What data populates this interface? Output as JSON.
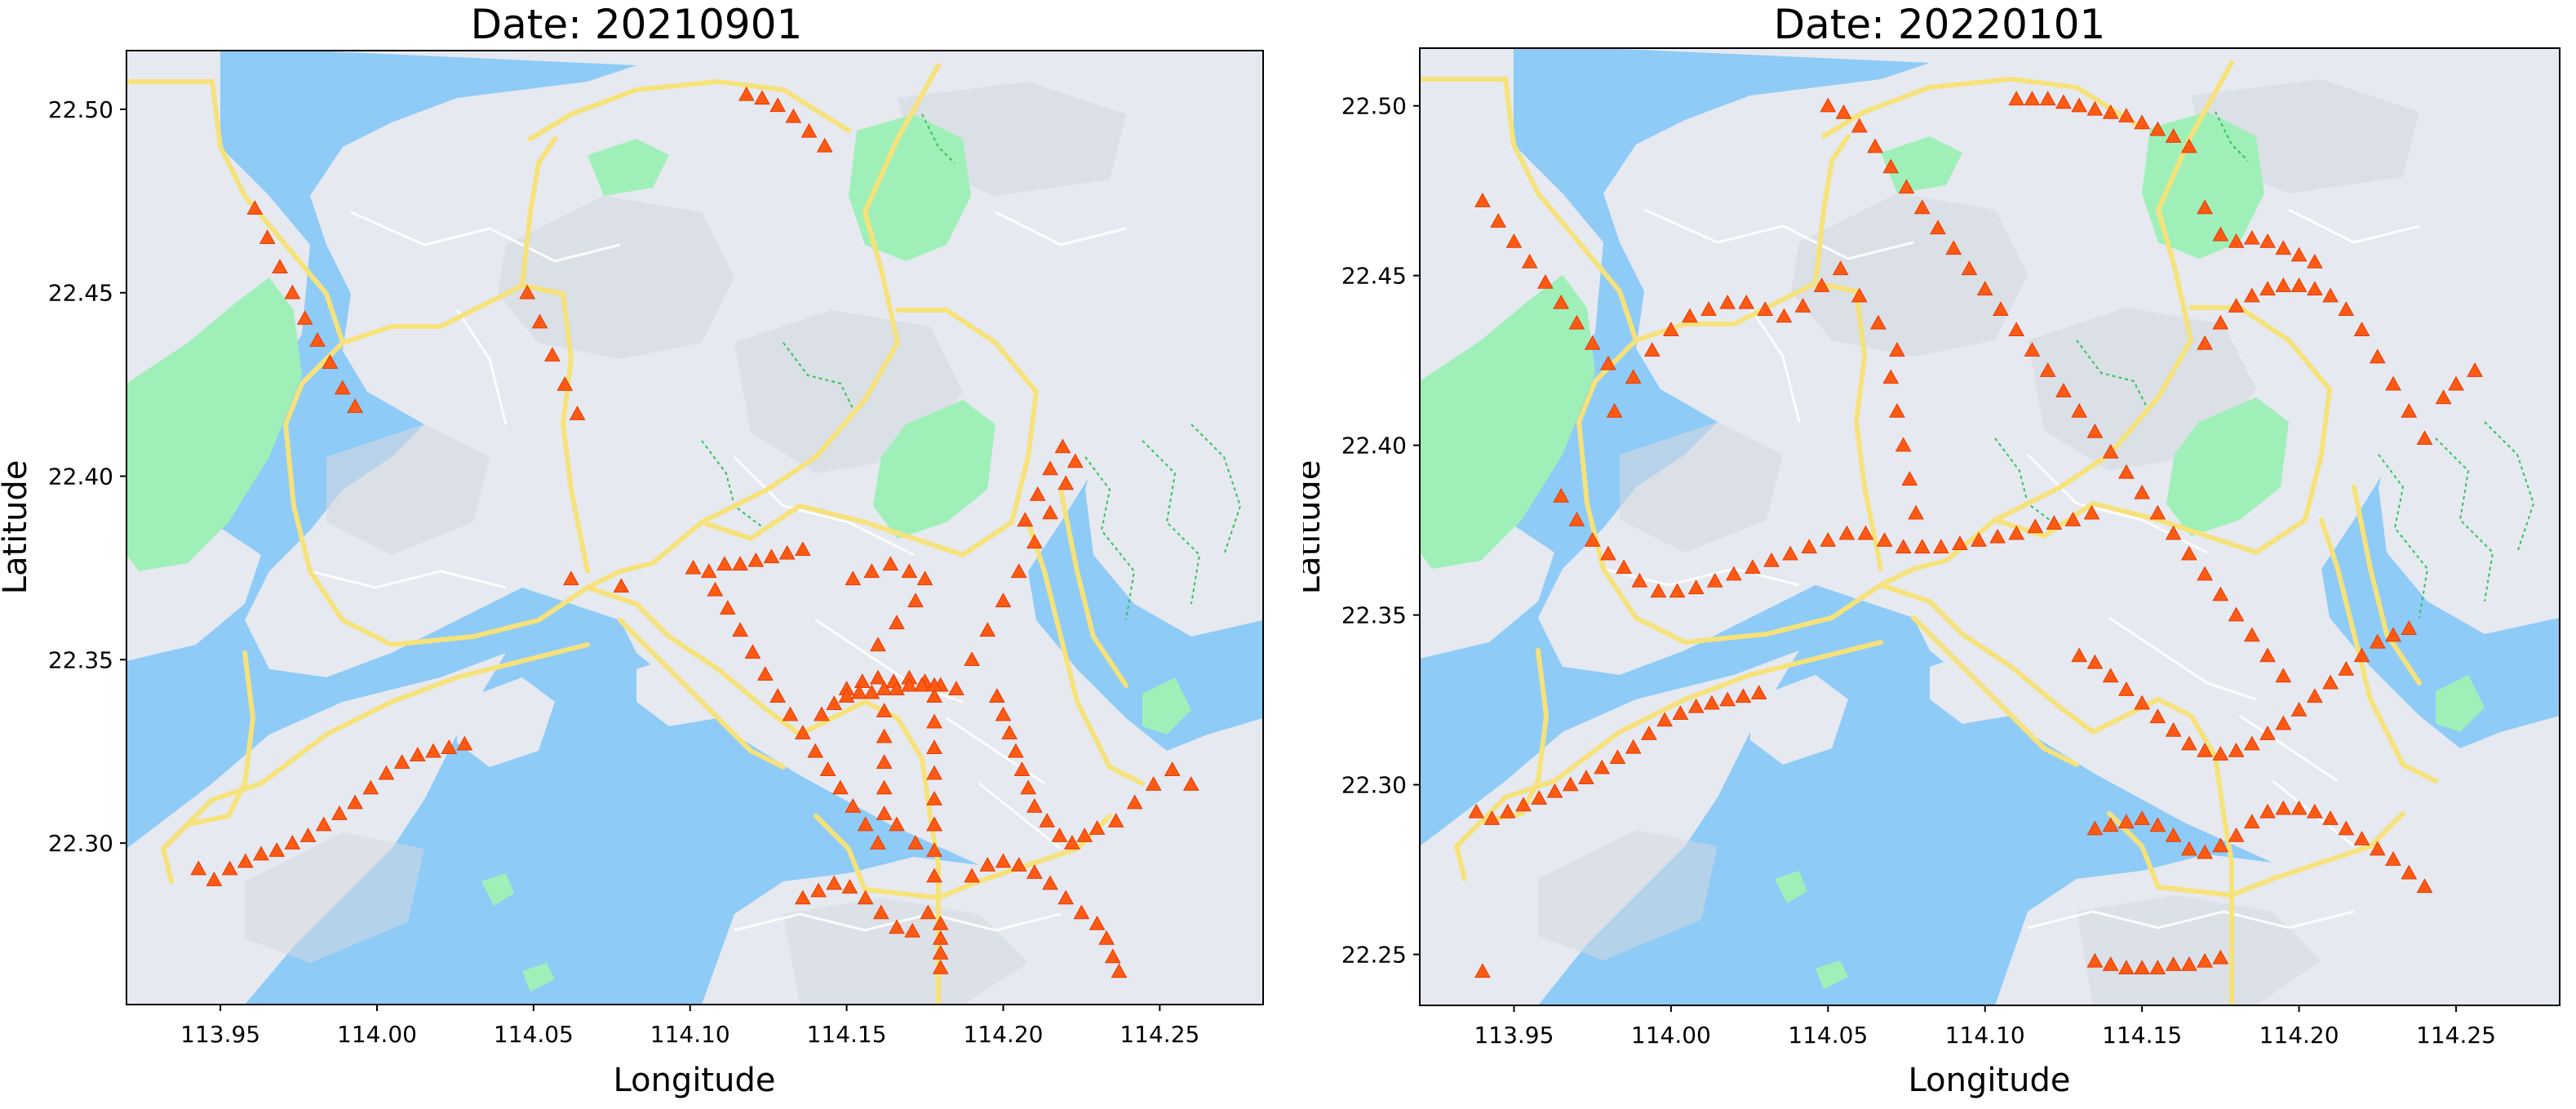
{
  "colors": {
    "sea": "#8ecbf7",
    "land": "#e6e9f0",
    "hill_shade": "#d4d8e0",
    "park": "#9ff0b8",
    "highway": "#f6e27a",
    "road": "#ffffff",
    "trail": "#2fc45a",
    "marker": "#ff5a14",
    "marker_edge": "#e23a00"
  },
  "maps": [
    {
      "title": "Date: 20210901",
      "xlabel": "Longitude",
      "ylabel": "Latitude",
      "xticks": [
        "113.95",
        "114.00",
        "114.05",
        "114.10",
        "114.15",
        "114.20",
        "114.25"
      ],
      "yticks": [
        "22.50",
        "22.45",
        "22.40",
        "22.35",
        "22.30"
      ],
      "marker_icon": "triangle-up-marker",
      "chart_data": {
        "type": "scatter",
        "xlim": [
          113.92,
          114.283
        ],
        "ylim": [
          22.256,
          22.516
        ],
        "x": [
          113.943,
          113.948,
          113.953,
          113.958,
          113.963,
          113.968,
          113.973,
          113.978,
          113.983,
          113.988,
          113.993,
          113.998,
          114.003,
          114.008,
          114.013,
          114.018,
          114.023,
          114.028,
          113.961,
          113.965,
          113.969,
          113.973,
          113.977,
          113.981,
          113.985,
          113.989,
          113.993,
          114.048,
          114.052,
          114.056,
          114.06,
          114.064,
          114.118,
          114.123,
          114.128,
          114.133,
          114.138,
          114.143,
          114.062,
          114.078,
          114.101,
          114.106,
          114.111,
          114.116,
          114.121,
          114.126,
          114.131,
          114.136,
          114.108,
          114.112,
          114.116,
          114.12,
          114.124,
          114.128,
          114.132,
          114.136,
          114.14,
          114.144,
          114.148,
          114.152,
          114.156,
          114.16,
          114.166,
          114.172,
          114.178,
          114.15,
          114.155,
          114.16,
          114.165,
          114.17,
          114.175,
          114.18,
          114.178,
          114.178,
          114.178,
          114.178,
          114.178,
          114.178,
          114.178,
          114.178,
          114.162,
          114.162,
          114.162,
          114.162,
          114.162,
          114.198,
          114.2,
          114.202,
          114.204,
          114.206,
          114.208,
          114.21,
          114.214,
          114.218,
          114.222,
          114.226,
          114.23,
          114.236,
          114.242,
          114.248,
          114.254,
          114.26,
          114.185,
          114.19,
          114.195,
          114.2,
          114.205,
          114.21,
          114.215,
          114.22,
          114.207,
          114.211,
          114.215,
          114.219,
          114.223,
          114.136,
          114.141,
          114.146,
          114.151,
          114.156,
          114.161,
          114.166,
          114.171,
          114.176,
          114.18,
          114.18,
          114.18,
          114.18,
          114.19,
          114.195,
          114.2,
          114.205,
          114.21,
          114.215,
          114.22,
          114.225,
          114.23,
          114.233,
          114.235,
          114.237,
          114.152,
          114.158,
          114.164,
          114.17,
          114.175,
          114.166,
          114.172,
          114.16,
          114.142,
          114.146,
          114.15,
          114.154,
          114.158,
          114.162,
          114.166,
          114.17,
          114.174,
          114.178
        ],
        "y": [
          22.293,
          22.29,
          22.293,
          22.295,
          22.297,
          22.298,
          22.3,
          22.302,
          22.305,
          22.308,
          22.311,
          22.315,
          22.319,
          22.322,
          22.324,
          22.325,
          22.326,
          22.327,
          22.473,
          22.465,
          22.457,
          22.45,
          22.443,
          22.437,
          22.431,
          22.424,
          22.419,
          22.45,
          22.442,
          22.433,
          22.425,
          22.417,
          22.504,
          22.503,
          22.501,
          22.498,
          22.494,
          22.49,
          22.372,
          22.37,
          22.375,
          22.374,
          22.376,
          22.376,
          22.377,
          22.378,
          22.379,
          22.38,
          22.369,
          22.364,
          22.358,
          22.352,
          22.346,
          22.34,
          22.335,
          22.33,
          22.325,
          22.32,
          22.315,
          22.31,
          22.305,
          22.3,
          22.305,
          22.3,
          22.305,
          22.342,
          22.344,
          22.345,
          22.344,
          22.345,
          22.344,
          22.343,
          22.34,
          22.333,
          22.326,
          22.319,
          22.312,
          22.305,
          22.298,
          22.291,
          22.336,
          22.329,
          22.322,
          22.315,
          22.308,
          22.34,
          22.335,
          22.33,
          22.325,
          22.32,
          22.315,
          22.31,
          22.306,
          22.302,
          22.3,
          22.302,
          22.304,
          22.306,
          22.311,
          22.316,
          22.32,
          22.316,
          22.342,
          22.35,
          22.358,
          22.366,
          22.374,
          22.382,
          22.39,
          22.398,
          22.388,
          22.395,
          22.402,
          22.408,
          22.404,
          22.285,
          22.287,
          22.289,
          22.288,
          22.285,
          22.281,
          22.277,
          22.276,
          22.281,
          22.278,
          22.274,
          22.27,
          22.266,
          22.291,
          22.294,
          22.295,
          22.294,
          22.292,
          22.289,
          22.285,
          22.281,
          22.278,
          22.274,
          22.269,
          22.265,
          22.372,
          22.374,
          22.376,
          22.374,
          22.372,
          22.36,
          22.366,
          22.354,
          22.335,
          22.338,
          22.34,
          22.341,
          22.341,
          22.342,
          22.342,
          22.343,
          22.343,
          22.343
        ]
      }
    },
    {
      "title": "Date: 20220101",
      "xlabel": "Longitude",
      "ylabel": "Latitude",
      "xticks": [
        "113.95",
        "114.00",
        "114.05",
        "114.10",
        "114.15",
        "114.20",
        "114.25"
      ],
      "yticks": [
        "22.50",
        "22.45",
        "22.40",
        "22.35",
        "22.30",
        "22.25"
      ],
      "marker_icon": "triangle-up-marker",
      "chart_data": {
        "type": "scatter",
        "xlim": [
          113.92,
          114.283
        ],
        "ylim": [
          22.235,
          22.517
        ],
        "x": [
          113.938,
          113.943,
          113.948,
          113.953,
          113.958,
          113.963,
          113.968,
          113.973,
          113.978,
          113.983,
          113.988,
          113.993,
          113.998,
          114.003,
          114.008,
          114.013,
          114.018,
          114.023,
          114.028,
          113.94,
          113.945,
          113.95,
          113.955,
          113.96,
          113.965,
          113.97,
          113.975,
          113.98,
          113.982,
          113.988,
          113.994,
          114.0,
          114.006,
          114.012,
          114.018,
          114.024,
          114.03,
          114.036,
          114.042,
          114.048,
          114.054,
          114.06,
          114.066,
          114.072,
          113.965,
          113.97,
          113.975,
          113.98,
          113.985,
          113.99,
          113.996,
          114.002,
          114.008,
          114.014,
          114.02,
          114.026,
          114.032,
          114.038,
          114.044,
          114.05,
          114.056,
          114.062,
          114.068,
          114.074,
          114.08,
          114.086,
          114.092,
          114.098,
          114.104,
          114.11,
          114.116,
          114.122,
          114.128,
          114.134,
          114.05,
          114.055,
          114.06,
          114.065,
          114.07,
          114.075,
          114.08,
          114.085,
          114.09,
          114.095,
          114.1,
          114.105,
          114.11,
          114.115,
          114.12,
          114.125,
          114.13,
          114.135,
          114.14,
          114.145,
          114.15,
          114.155,
          114.16,
          114.165,
          114.17,
          114.175,
          114.18,
          114.185,
          114.19,
          114.195,
          114.07,
          114.072,
          114.074,
          114.076,
          114.078,
          114.08,
          114.11,
          114.115,
          114.12,
          114.125,
          114.13,
          114.135,
          114.14,
          114.145,
          114.15,
          114.155,
          114.16,
          114.165,
          114.17,
          114.175,
          114.18,
          114.185,
          114.19,
          114.195,
          114.2,
          114.205,
          114.17,
          114.175,
          114.18,
          114.185,
          114.19,
          114.195,
          114.2,
          114.205,
          114.21,
          114.215,
          114.22,
          114.225,
          114.23,
          114.235,
          114.24,
          114.13,
          114.135,
          114.14,
          114.145,
          114.15,
          114.155,
          114.16,
          114.165,
          114.17,
          114.175,
          114.18,
          114.185,
          114.19,
          114.195,
          114.2,
          114.205,
          114.21,
          114.215,
          114.22,
          114.225,
          114.23,
          114.235,
          114.135,
          114.14,
          114.145,
          114.15,
          114.155,
          114.16,
          114.165,
          114.17,
          114.175,
          114.18,
          114.185,
          114.19,
          114.195,
          114.2,
          114.205,
          114.21,
          114.215,
          114.22,
          114.225,
          114.23,
          114.235,
          114.24,
          114.135,
          114.14,
          114.145,
          114.15,
          114.155,
          114.16,
          114.165,
          114.17,
          114.175,
          113.94,
          114.246,
          114.25,
          114.256
        ],
        "y": [
          22.292,
          22.29,
          22.292,
          22.294,
          22.296,
          22.298,
          22.3,
          22.302,
          22.305,
          22.308,
          22.311,
          22.315,
          22.319,
          22.321,
          22.323,
          22.324,
          22.325,
          22.326,
          22.327,
          22.472,
          22.466,
          22.46,
          22.454,
          22.448,
          22.442,
          22.436,
          22.43,
          22.424,
          22.41,
          22.42,
          22.428,
          22.434,
          22.438,
          22.44,
          22.442,
          22.442,
          22.44,
          22.438,
          22.441,
          22.447,
          22.452,
          22.444,
          22.436,
          22.428,
          22.385,
          22.378,
          22.372,
          22.368,
          22.364,
          22.36,
          22.357,
          22.357,
          22.358,
          22.36,
          22.362,
          22.364,
          22.366,
          22.368,
          22.37,
          22.372,
          22.374,
          22.374,
          22.372,
          22.37,
          22.37,
          22.37,
          22.371,
          22.372,
          22.373,
          22.374,
          22.376,
          22.377,
          22.378,
          22.38,
          22.5,
          22.498,
          22.494,
          22.488,
          22.482,
          22.476,
          22.47,
          22.464,
          22.458,
          22.452,
          22.446,
          22.44,
          22.434,
          22.428,
          22.422,
          22.416,
          22.41,
          22.404,
          22.398,
          22.392,
          22.386,
          22.38,
          22.374,
          22.368,
          22.362,
          22.356,
          22.35,
          22.344,
          22.338,
          22.332,
          22.42,
          22.41,
          22.4,
          22.39,
          22.38,
          22.37,
          22.502,
          22.502,
          22.502,
          22.501,
          22.5,
          22.499,
          22.498,
          22.497,
          22.495,
          22.493,
          22.491,
          22.488,
          22.47,
          22.462,
          22.46,
          22.461,
          22.46,
          22.458,
          22.456,
          22.454,
          22.43,
          22.436,
          22.441,
          22.444,
          22.446,
          22.447,
          22.447,
          22.446,
          22.444,
          22.44,
          22.434,
          22.426,
          22.418,
          22.41,
          22.402,
          22.338,
          22.336,
          22.332,
          22.328,
          22.324,
          22.32,
          22.316,
          22.312,
          22.31,
          22.309,
          22.31,
          22.312,
          22.315,
          22.318,
          22.322,
          22.326,
          22.33,
          22.334,
          22.338,
          22.342,
          22.344,
          22.346,
          22.287,
          22.288,
          22.289,
          22.29,
          22.288,
          22.285,
          22.281,
          22.28,
          22.282,
          22.285,
          22.289,
          22.292,
          22.293,
          22.293,
          22.292,
          22.29,
          22.287,
          22.284,
          22.281,
          22.278,
          22.274,
          22.27,
          22.248,
          22.247,
          22.246,
          22.246,
          22.246,
          22.247,
          22.247,
          22.248,
          22.249,
          22.245,
          22.414,
          22.418,
          22.422
        ]
      }
    }
  ]
}
